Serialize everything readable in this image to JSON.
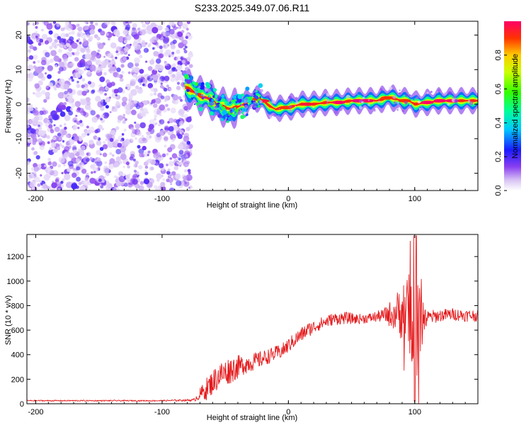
{
  "figure_title": "S233.2025.349.07.06.R11",
  "chart_data": [
    {
      "type": "heatmap",
      "panel": "top",
      "title": "S233.2025.349.07.06.R11",
      "xlabel": "Height of straight line (km)",
      "ylabel": "Frequency (Hz)",
      "xlim": [
        -207,
        150
      ],
      "ylim": [
        -25,
        24
      ],
      "xticks": [
        -200,
        -100,
        0,
        100
      ],
      "yticks": [
        -20,
        -10,
        0,
        10,
        20
      ],
      "colorbar": {
        "label": "Normalized spectral amplitude",
        "range": [
          0.0,
          1.0
        ],
        "ticks": [
          0.0,
          0.2,
          0.4,
          0.6,
          0.8
        ],
        "tick_labels": [
          "0.0",
          "0.2",
          "0.4",
          "0.6",
          "0.8"
        ]
      },
      "noise_region_x": [
        -207,
        -77
      ],
      "ridge": {
        "description_values_km_hz": true,
        "x": [
          -82,
          -77,
          -70,
          -62,
          -55,
          -45,
          -35,
          -28,
          -22,
          -15,
          -10,
          -5,
          0,
          10,
          20,
          30,
          40,
          50,
          60,
          70,
          75,
          80,
          85,
          90,
          95,
          100,
          110,
          120,
          130,
          140,
          150
        ],
        "y": [
          5,
          4,
          2.5,
          1.5,
          -0.5,
          -1.5,
          0,
          1.5,
          1.5,
          -0.5,
          -1.5,
          -1,
          -1,
          0,
          0,
          0.5,
          0.5,
          1,
          1,
          1,
          1.5,
          2,
          1.5,
          1,
          1,
          0,
          0.5,
          1,
          1,
          1,
          1
        ],
        "peak_amplitude": 1.0
      }
    },
    {
      "type": "line",
      "panel": "bottom",
      "xlabel": "Height of straight line (km)",
      "ylabel": "SNR (10 * v/v)",
      "xlim": [
        -207,
        150
      ],
      "ylim": [
        0,
        1380
      ],
      "xticks": [
        -200,
        -100,
        0,
        100
      ],
      "yticks": [
        0,
        200,
        400,
        600,
        800,
        1000,
        1200
      ],
      "color": "#e41a1c",
      "series": [
        {
          "name": "SNR",
          "envelope_x": [
            -207,
            -150,
            -100,
            -75,
            -65,
            -55,
            -45,
            -35,
            -25,
            -15,
            -5,
            5,
            15,
            25,
            35,
            45,
            55,
            65,
            75,
            85,
            90,
            95,
            100,
            105,
            110,
            120,
            130,
            140,
            150
          ],
          "envelope_y": [
            25,
            25,
            25,
            30,
            120,
            230,
            280,
            320,
            350,
            390,
            430,
            520,
            600,
            650,
            690,
            700,
            690,
            700,
            720,
            740,
            760,
            750,
            700,
            720,
            700,
            720,
            730,
            720,
            720
          ],
          "noise_amplitude": [
            5,
            5,
            5,
            10,
            90,
            110,
            110,
            80,
            70,
            60,
            60,
            60,
            60,
            50,
            50,
            50,
            40,
            40,
            50,
            150,
            250,
            300,
            450,
            300,
            60,
            50,
            50,
            50,
            50
          ]
        }
      ]
    }
  ]
}
